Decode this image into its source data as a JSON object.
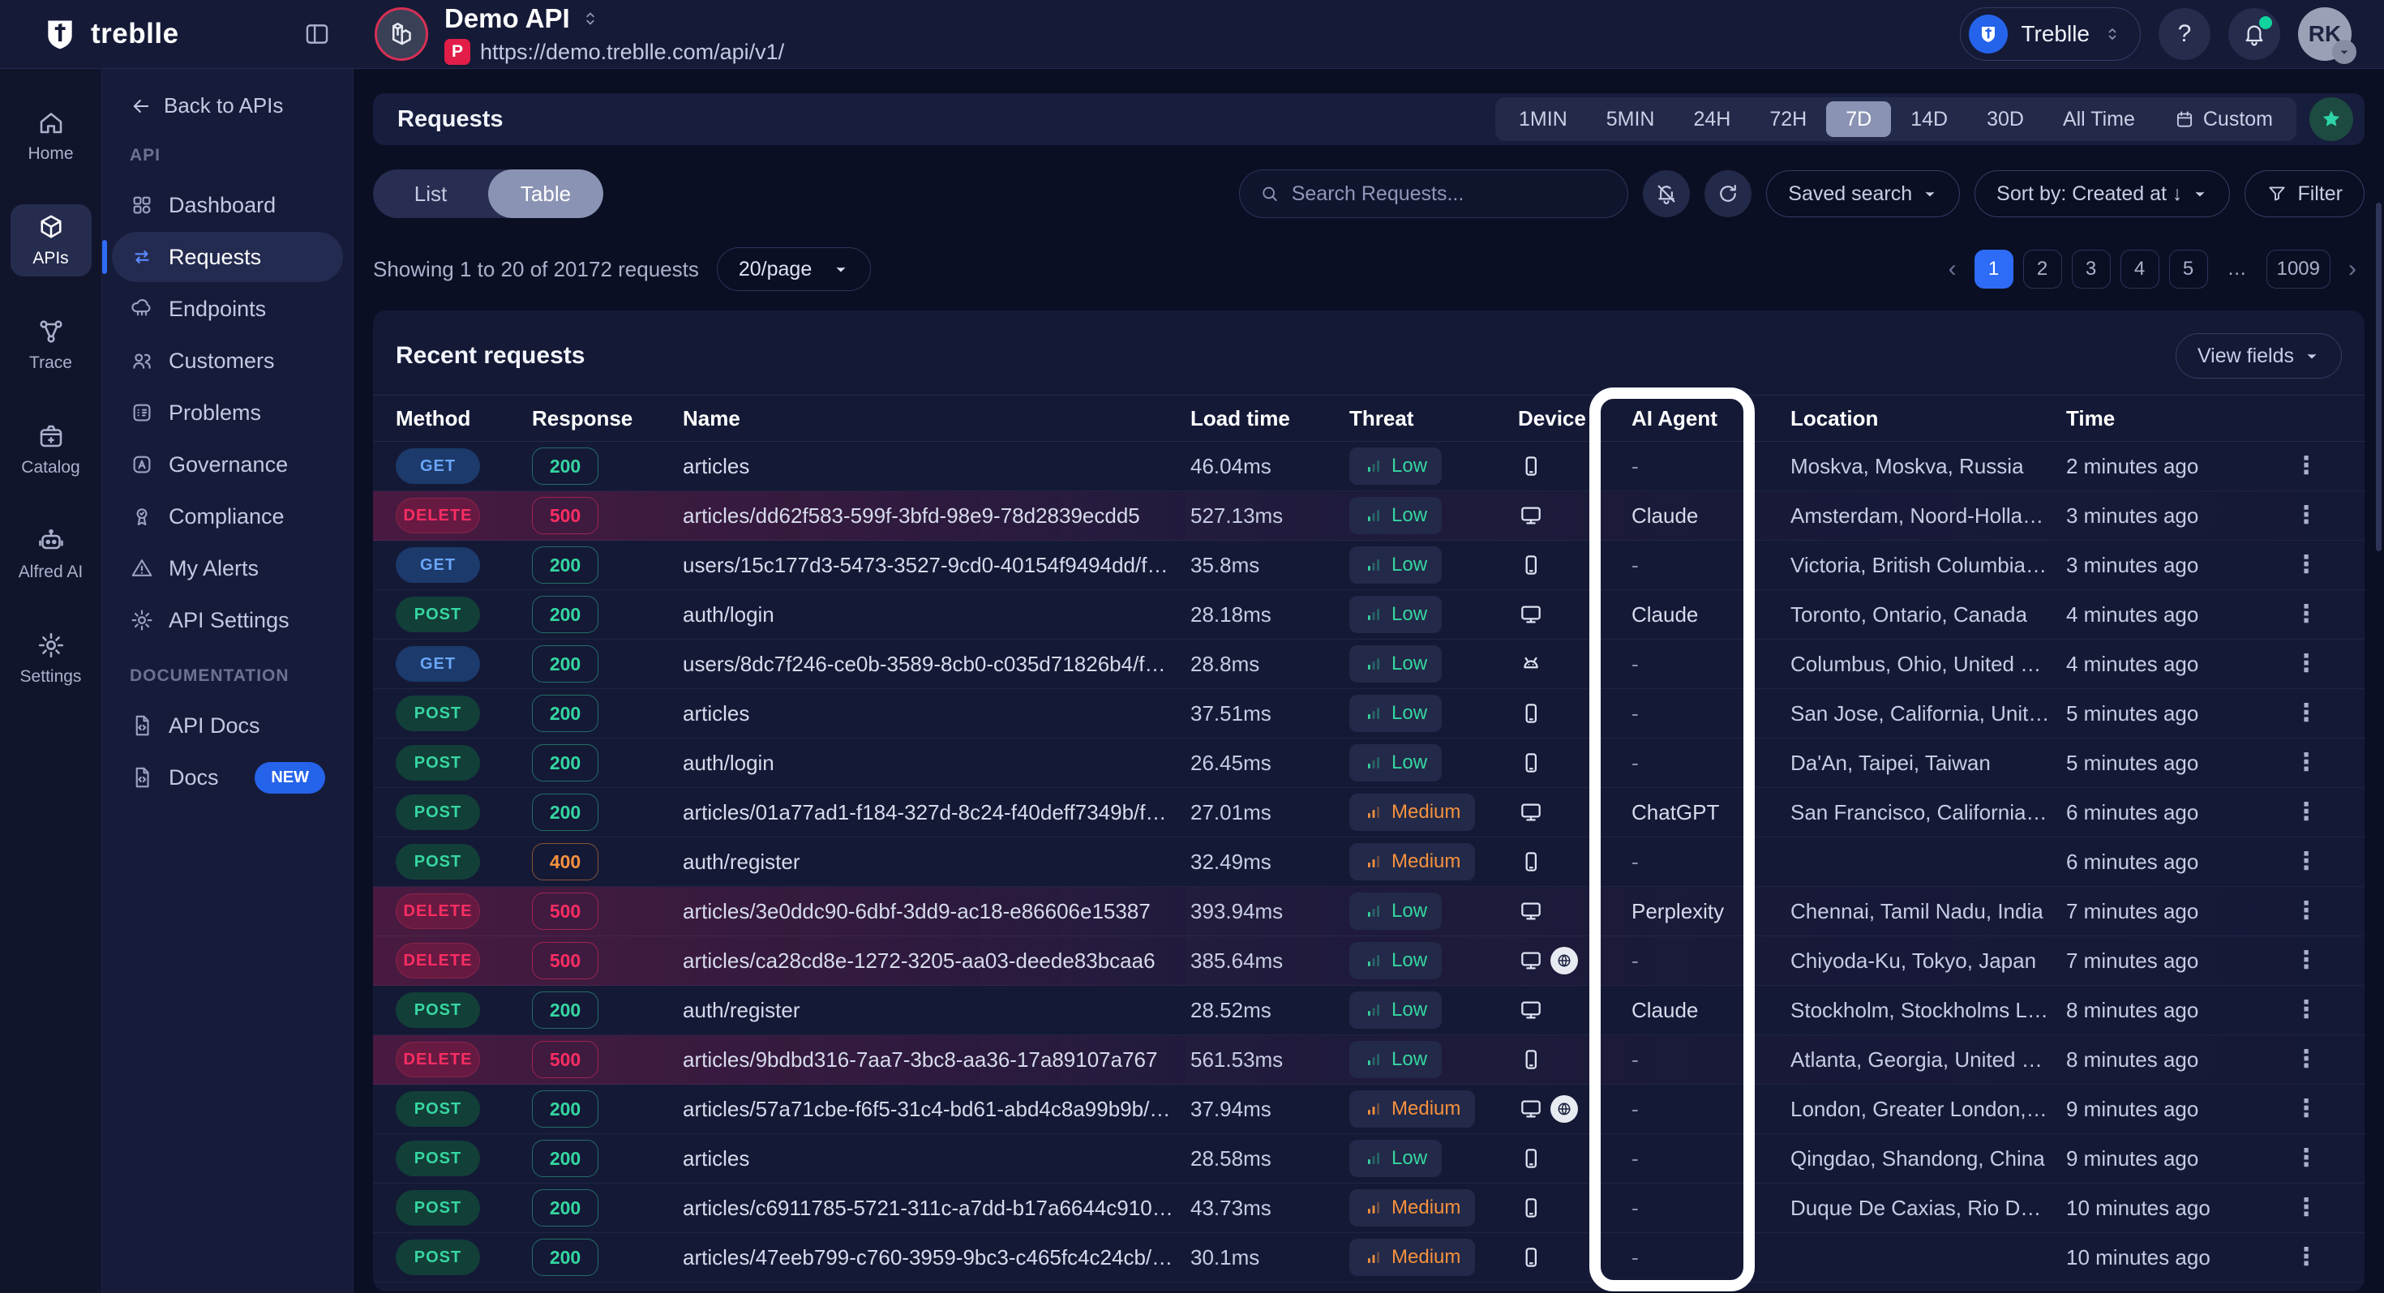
{
  "colors": {
    "accent_blue": "#2e6bf6",
    "green": "#35d6a0",
    "orange": "#f5923e",
    "red": "#fb2d62",
    "teal": "#2dd4a8",
    "env_red": "#e11d48"
  },
  "header": {
    "brand": "treblle",
    "collapse_icon": "panel-collapse-icon",
    "api_title": "Demo API",
    "api_env_badge": "P",
    "api_url": "https://demo.treblle.com/api/v1/",
    "workspace": {
      "name": "Treblle",
      "icon": "treblle-logo-icon"
    },
    "help_label": "?",
    "notifications_icon": "bell-icon",
    "avatar_initials": "RK"
  },
  "rail": {
    "items": [
      {
        "label": "Home",
        "icon": "home-icon",
        "active": false
      },
      {
        "label": "APIs",
        "icon": "cube-icon",
        "active": true
      },
      {
        "label": "Trace",
        "icon": "trace-icon",
        "active": false
      },
      {
        "label": "Catalog",
        "icon": "catalog-icon",
        "active": false
      },
      {
        "label": "Alfred AI",
        "icon": "robot-icon",
        "active": false
      },
      {
        "label": "Settings",
        "icon": "gear-icon",
        "active": false
      }
    ]
  },
  "sidebar": {
    "back_label": "Back to APIs",
    "sections": [
      {
        "title": "API",
        "items": [
          {
            "label": "Dashboard",
            "icon": "dashboard-icon",
            "active": false
          },
          {
            "label": "Requests",
            "icon": "requests-icon",
            "active": true
          },
          {
            "label": "Endpoints",
            "icon": "endpoints-icon",
            "active": false
          },
          {
            "label": "Customers",
            "icon": "customers-icon",
            "active": false
          },
          {
            "label": "Problems",
            "icon": "problems-icon",
            "active": false
          },
          {
            "label": "Governance",
            "icon": "governance-icon",
            "active": false
          },
          {
            "label": "Compliance",
            "icon": "compliance-icon",
            "active": false
          },
          {
            "label": "My Alerts",
            "icon": "alerts-icon",
            "active": false
          },
          {
            "label": "API Settings",
            "icon": "gear-icon",
            "active": false
          }
        ]
      },
      {
        "title": "DOCUMENTATION",
        "items": [
          {
            "label": "API Docs",
            "icon": "doc-code-icon",
            "active": false
          },
          {
            "label": "Docs",
            "icon": "doc-code-icon",
            "active": false,
            "badge": "NEW"
          }
        ]
      }
    ]
  },
  "toolbar": {
    "title": "Requests",
    "time_ranges": [
      "1MIN",
      "5MIN",
      "24H",
      "72H",
      "7D",
      "14D",
      "30D",
      "All Time",
      "Custom"
    ],
    "active_range": "7D"
  },
  "controls": {
    "view_toggle": [
      "List",
      "Table"
    ],
    "active_view": "Table",
    "search_placeholder": "Search Requests...",
    "saved_search_label": "Saved search",
    "sort_label": "Sort by: Created at ↓",
    "filter_label": "Filter"
  },
  "status": {
    "showing_text": "Showing 1 to 20 of 20172 requests",
    "per_page": "20/page"
  },
  "pagination": {
    "pages": [
      "1",
      "2",
      "3",
      "4",
      "5",
      "…",
      "1009"
    ],
    "active_page": "1"
  },
  "table": {
    "title": "Recent requests",
    "view_fields_label": "View fields",
    "columns": [
      "Method",
      "Response",
      "Name",
      "Load time",
      "Threat",
      "Device",
      "AI Agent",
      "Location",
      "Time"
    ],
    "highlight_column": "AI Agent",
    "rows": [
      {
        "method": "GET",
        "response": "200",
        "name": "articles",
        "load_time": "46.04ms",
        "threat": "Low",
        "device": "mobile",
        "device_badge": false,
        "ai_agent": "-",
        "location": "Moskva, Moskva, Russia",
        "time": "2 minutes ago",
        "highlighted": false
      },
      {
        "method": "DELETE",
        "response": "500",
        "name": "articles/dd62f583-599f-3bfd-98e9-78d2839ecdd5",
        "load_time": "527.13ms",
        "threat": "Low",
        "device": "desktop",
        "device_badge": false,
        "ai_agent": "Claude",
        "location": "Amsterdam, Noord-Holland, ...",
        "time": "3 minutes ago",
        "highlighted": true
      },
      {
        "method": "GET",
        "response": "200",
        "name": "users/15c177d3-5473-3527-9cd0-40154f9494dd/fav...",
        "load_time": "35.8ms",
        "threat": "Low",
        "device": "mobile",
        "device_badge": false,
        "ai_agent": "-",
        "location": "Victoria, British Columbia, C...",
        "time": "3 minutes ago",
        "highlighted": false
      },
      {
        "method": "POST",
        "response": "200",
        "name": "auth/login",
        "load_time": "28.18ms",
        "threat": "Low",
        "device": "desktop",
        "device_badge": false,
        "ai_agent": "Claude",
        "location": "Toronto, Ontario, Canada",
        "time": "4 minutes ago",
        "highlighted": false
      },
      {
        "method": "GET",
        "response": "200",
        "name": "users/8dc7f246-ce0b-3589-8cb0-c035d71826b4/fav...",
        "load_time": "28.8ms",
        "threat": "Low",
        "device": "android",
        "device_badge": false,
        "ai_agent": "-",
        "location": "Columbus, Ohio, United Stat...",
        "time": "4 minutes ago",
        "highlighted": false
      },
      {
        "method": "POST",
        "response": "200",
        "name": "articles",
        "load_time": "37.51ms",
        "threat": "Low",
        "device": "mobile",
        "device_badge": false,
        "ai_agent": "-",
        "location": "San Jose, California, United ...",
        "time": "5 minutes ago",
        "highlighted": false
      },
      {
        "method": "POST",
        "response": "200",
        "name": "auth/login",
        "load_time": "26.45ms",
        "threat": "Low",
        "device": "mobile",
        "device_badge": false,
        "ai_agent": "-",
        "location": "Da'An, Taipei, Taiwan",
        "time": "5 minutes ago",
        "highlighted": false
      },
      {
        "method": "POST",
        "response": "200",
        "name": "articles/01a77ad1-f184-327d-8c24-f40deff7349b/favo...",
        "load_time": "27.01ms",
        "threat": "Medium",
        "device": "desktop",
        "device_badge": false,
        "ai_agent": "ChatGPT",
        "location": "San Francisco, California, U...",
        "time": "6 minutes ago",
        "highlighted": false
      },
      {
        "method": "POST",
        "response": "400",
        "name": "auth/register",
        "load_time": "32.49ms",
        "threat": "Medium",
        "device": "mobile",
        "device_badge": false,
        "ai_agent": "-",
        "location": "",
        "time": "6 minutes ago",
        "highlighted": false
      },
      {
        "method": "DELETE",
        "response": "500",
        "name": "articles/3e0ddc90-6dbf-3dd9-ac18-e86606e15387",
        "load_time": "393.94ms",
        "threat": "Low",
        "device": "desktop",
        "device_badge": false,
        "ai_agent": "Perplexity",
        "location": "Chennai, Tamil Nadu, India",
        "time": "7 minutes ago",
        "highlighted": true
      },
      {
        "method": "DELETE",
        "response": "500",
        "name": "articles/ca28cd8e-1272-3205-aa03-deede83bcaa6",
        "load_time": "385.64ms",
        "threat": "Low",
        "device": "desktop",
        "device_badge": true,
        "ai_agent": "-",
        "location": "Chiyoda-Ku, Tokyo, Japan",
        "time": "7 minutes ago",
        "highlighted": true
      },
      {
        "method": "POST",
        "response": "200",
        "name": "auth/register",
        "load_time": "28.52ms",
        "threat": "Low",
        "device": "desktop",
        "device_badge": false,
        "ai_agent": "Claude",
        "location": "Stockholm, Stockholms Lan,...",
        "time": "8 minutes ago",
        "highlighted": false
      },
      {
        "method": "DELETE",
        "response": "500",
        "name": "articles/9bdbd316-7aa7-3bc8-aa36-17a89107a767",
        "load_time": "561.53ms",
        "threat": "Low",
        "device": "mobile",
        "device_badge": false,
        "ai_agent": "-",
        "location": "Atlanta, Georgia, United Stat...",
        "time": "8 minutes ago",
        "highlighted": true
      },
      {
        "method": "POST",
        "response": "200",
        "name": "articles/57a71cbe-f6f5-31c4-bd61-abd4c8a99b9b/fav...",
        "load_time": "37.94ms",
        "threat": "Medium",
        "device": "desktop",
        "device_badge": true,
        "ai_agent": "-",
        "location": "London, Greater London, Un...",
        "time": "9 minutes ago",
        "highlighted": false
      },
      {
        "method": "POST",
        "response": "200",
        "name": "articles",
        "load_time": "28.58ms",
        "threat": "Low",
        "device": "mobile",
        "device_badge": false,
        "ai_agent": "-",
        "location": "Qingdao, Shandong, China",
        "time": "9 minutes ago",
        "highlighted": false
      },
      {
        "method": "POST",
        "response": "200",
        "name": "articles/c6911785-5721-311c-a7dd-b17a6644c910/fav...",
        "load_time": "43.73ms",
        "threat": "Medium",
        "device": "mobile",
        "device_badge": false,
        "ai_agent": "-",
        "location": "Duque De Caxias, Rio De Ja...",
        "time": "10 minutes ago",
        "highlighted": false
      },
      {
        "method": "POST",
        "response": "200",
        "name": "articles/47eeb799-c760-3959-9bc3-c465fc4c24cb/fa...",
        "load_time": "30.1ms",
        "threat": "Medium",
        "device": "mobile",
        "device_badge": false,
        "ai_agent": "-",
        "location": "",
        "time": "10 minutes ago",
        "highlighted": false
      }
    ]
  }
}
